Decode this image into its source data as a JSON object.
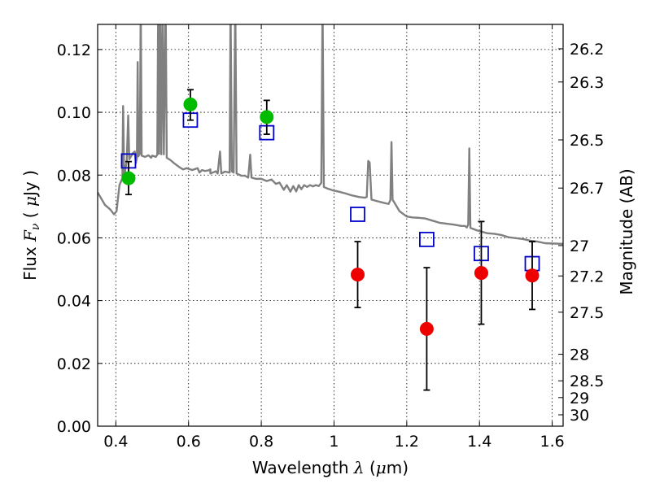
{
  "chart_data": {
    "type": "scatter",
    "xlabel": {
      "text": "Wavelength",
      "symbol": "λ",
      "unit_open": "(",
      "unit_mu": "μ",
      "unit_rest": "m)"
    },
    "ylabel": {
      "text": "Flux",
      "symbol": "F",
      "sub": "ν",
      "unit_open": "(",
      "unit_mu": "μ",
      "unit_rest": "Jy )"
    },
    "y2label": "Magnitude (AB)",
    "xlim": [
      0.35,
      1.63
    ],
    "ylim": [
      0.0,
      0.128
    ],
    "grid": true,
    "x_ticks": [
      {
        "value": 0.4,
        "label": "0.4"
      },
      {
        "value": 0.6,
        "label": "0.6"
      },
      {
        "value": 0.8,
        "label": "0.8"
      },
      {
        "value": 1.0,
        "label": "1"
      },
      {
        "value": 1.2,
        "label": "1.2"
      },
      {
        "value": 1.4,
        "label": "1.4"
      },
      {
        "value": 1.6,
        "label": "1.6"
      }
    ],
    "y_ticks": [
      {
        "value": 0.0,
        "label": "0.00"
      },
      {
        "value": 0.02,
        "label": "0.02"
      },
      {
        "value": 0.04,
        "label": "0.04"
      },
      {
        "value": 0.06,
        "label": "0.06"
      },
      {
        "value": 0.08,
        "label": "0.08"
      },
      {
        "value": 0.1,
        "label": "0.10"
      },
      {
        "value": 0.12,
        "label": "0.12"
      }
    ],
    "y2_ticks": [
      {
        "value": 26.2,
        "label": "26.2"
      },
      {
        "value": 26.3,
        "label": "26.3"
      },
      {
        "value": 26.5,
        "label": "26.5"
      },
      {
        "value": 26.7,
        "label": "26.7"
      },
      {
        "value": 27.0,
        "label": "27"
      },
      {
        "value": 27.2,
        "label": "27.2"
      },
      {
        "value": 27.5,
        "label": "27.5"
      },
      {
        "value": 28.0,
        "label": "28"
      },
      {
        "value": 28.5,
        "label": "28.5"
      },
      {
        "value": 29.0,
        "label": "29"
      },
      {
        "value": 30.0,
        "label": "30"
      }
    ],
    "series": [
      {
        "kind": "line",
        "color": "#808080",
        "points": [
          [
            0.35,
            0.0745
          ],
          [
            0.37,
            0.0705
          ],
          [
            0.385,
            0.069
          ],
          [
            0.395,
            0.0675
          ],
          [
            0.402,
            0.0685
          ],
          [
            0.41,
            0.0768
          ],
          [
            0.418,
            0.079
          ],
          [
            0.42,
            0.102
          ],
          [
            0.423,
            0.0795
          ],
          [
            0.43,
            0.0845
          ],
          [
            0.434,
            0.099
          ],
          [
            0.437,
            0.085
          ],
          [
            0.443,
            0.0862
          ],
          [
            0.447,
            0.087
          ],
          [
            0.452,
            0.0875
          ],
          [
            0.455,
            0.0838
          ],
          [
            0.458,
            0.0855
          ],
          [
            0.46,
            0.116
          ],
          [
            0.462,
            0.086
          ],
          [
            0.466,
            0.0868
          ],
          [
            0.4685,
            0.135
          ],
          [
            0.471,
            0.0862
          ],
          [
            0.48,
            0.0858
          ],
          [
            0.49,
            0.0863
          ],
          [
            0.497,
            0.0855
          ],
          [
            0.5,
            0.0862
          ],
          [
            0.51,
            0.0858
          ],
          [
            0.514,
            0.0865
          ],
          [
            0.5165,
            0.135
          ],
          [
            0.519,
            0.0868
          ],
          [
            0.522,
            0.135
          ],
          [
            0.525,
            0.0866
          ],
          [
            0.529,
            0.135
          ],
          [
            0.532,
            0.0866
          ],
          [
            0.537,
            0.135
          ],
          [
            0.54,
            0.0855
          ],
          [
            0.55,
            0.0848
          ],
          [
            0.56,
            0.0838
          ],
          [
            0.575,
            0.0825
          ],
          [
            0.585,
            0.0818
          ],
          [
            0.595,
            0.0822
          ],
          [
            0.61,
            0.0816
          ],
          [
            0.625,
            0.0822
          ],
          [
            0.63,
            0.0808
          ],
          [
            0.637,
            0.0816
          ],
          [
            0.645,
            0.0813
          ],
          [
            0.655,
            0.0815
          ],
          [
            0.66,
            0.0818
          ],
          [
            0.66,
            0.0805
          ],
          [
            0.675,
            0.0812
          ],
          [
            0.68,
            0.0805
          ],
          [
            0.6865,
            0.0875
          ],
          [
            0.69,
            0.0805
          ],
          [
            0.7,
            0.0811
          ],
          [
            0.713,
            0.0808
          ],
          [
            0.7155,
            0.135
          ],
          [
            0.719,
            0.0812
          ],
          [
            0.724,
            0.0808
          ],
          [
            0.7285,
            0.135
          ],
          [
            0.732,
            0.0805
          ],
          [
            0.745,
            0.0798
          ],
          [
            0.755,
            0.0798
          ],
          [
            0.764,
            0.0792
          ],
          [
            0.7695,
            0.0865
          ],
          [
            0.773,
            0.0792
          ],
          [
            0.785,
            0.0788
          ],
          [
            0.8,
            0.0788
          ],
          [
            0.815,
            0.0781
          ],
          [
            0.828,
            0.0786
          ],
          [
            0.84,
            0.0772
          ],
          [
            0.85,
            0.0776
          ],
          [
            0.862,
            0.0753
          ],
          [
            0.87,
            0.0768
          ],
          [
            0.88,
            0.0747
          ],
          [
            0.888,
            0.0765
          ],
          [
            0.896,
            0.0748
          ],
          [
            0.903,
            0.0768
          ],
          [
            0.91,
            0.0755
          ],
          [
            0.918,
            0.0768
          ],
          [
            0.926,
            0.0762
          ],
          [
            0.934,
            0.0768
          ],
          [
            0.942,
            0.0764
          ],
          [
            0.95,
            0.0768
          ],
          [
            0.958,
            0.0765
          ],
          [
            0.965,
            0.0775
          ],
          [
            0.9685,
            0.135
          ],
          [
            0.972,
            0.0762
          ],
          [
            0.98,
            0.0758
          ],
          [
            0.995,
            0.0752
          ],
          [
            1.01,
            0.0748
          ],
          [
            1.03,
            0.0742
          ],
          [
            1.05,
            0.0735
          ],
          [
            1.07,
            0.073
          ],
          [
            1.085,
            0.0728
          ],
          [
            1.09,
            0.073
          ],
          [
            1.094,
            0.0845
          ],
          [
            1.098,
            0.084
          ],
          [
            1.103,
            0.0722
          ],
          [
            1.115,
            0.0718
          ],
          [
            1.135,
            0.0712
          ],
          [
            1.15,
            0.0708
          ],
          [
            1.155,
            0.072
          ],
          [
            1.158,
            0.0905
          ],
          [
            1.161,
            0.0722
          ],
          [
            1.18,
            0.0685
          ],
          [
            1.2,
            0.0668
          ],
          [
            1.215,
            0.0665
          ],
          [
            1.23,
            0.0664
          ],
          [
            1.25,
            0.0662
          ],
          [
            1.27,
            0.0655
          ],
          [
            1.29,
            0.0648
          ],
          [
            1.31,
            0.0645
          ],
          [
            1.33,
            0.0642
          ],
          [
            1.35,
            0.0638
          ],
          [
            1.36,
            0.0638
          ],
          [
            1.365,
            0.0633
          ],
          [
            1.369,
            0.0642
          ],
          [
            1.372,
            0.0885
          ],
          [
            1.375,
            0.0632
          ],
          [
            1.39,
            0.0625
          ],
          [
            1.42,
            0.0615
          ],
          [
            1.44,
            0.0613
          ],
          [
            1.46,
            0.0609
          ],
          [
            1.48,
            0.0602
          ],
          [
            1.5,
            0.0599
          ],
          [
            1.52,
            0.0596
          ],
          [
            1.54,
            0.0591
          ],
          [
            1.56,
            0.0588
          ],
          [
            1.58,
            0.0583
          ],
          [
            1.6,
            0.0582
          ],
          [
            1.63,
            0.0581
          ]
        ]
      },
      {
        "kind": "open-square",
        "color": "#0000cc",
        "points": [
          [
            0.435,
            0.0845
          ],
          [
            0.605,
            0.0975
          ],
          [
            0.815,
            0.0935
          ],
          [
            1.065,
            0.0675
          ],
          [
            1.255,
            0.0595
          ],
          [
            1.405,
            0.055
          ],
          [
            1.545,
            0.0518
          ]
        ]
      },
      {
        "kind": "filled-circle-error",
        "color": "#00bb00",
        "points": [
          {
            "x": 0.435,
            "y": 0.079,
            "lo": 0.0738,
            "hi": 0.0843
          },
          {
            "x": 0.605,
            "y": 0.1025,
            "lo": 0.0975,
            "hi": 0.1072
          },
          {
            "x": 0.815,
            "y": 0.0985,
            "lo": 0.093,
            "hi": 0.1038
          }
        ]
      },
      {
        "kind": "filled-circle-error",
        "color": "#ee0000",
        "points": [
          {
            "x": 1.065,
            "y": 0.0483,
            "lo": 0.0378,
            "hi": 0.0588
          },
          {
            "x": 1.255,
            "y": 0.031,
            "lo": 0.0115,
            "hi": 0.0505
          },
          {
            "x": 1.405,
            "y": 0.0488,
            "lo": 0.0325,
            "hi": 0.0652
          },
          {
            "x": 1.545,
            "y": 0.048,
            "lo": 0.0372,
            "hi": 0.0588
          }
        ]
      }
    ]
  }
}
